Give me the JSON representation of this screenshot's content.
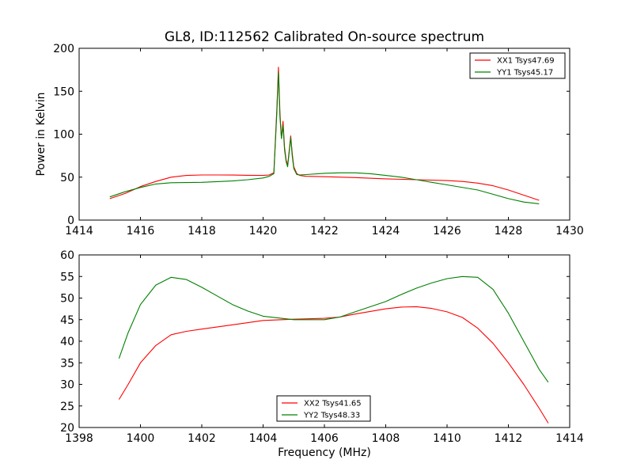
{
  "chart_data": [
    {
      "type": "line",
      "title": "GL8, ID:112562 Calibrated On-source spectrum",
      "xlabel": "",
      "ylabel": "Power in Kelvin",
      "xlim": [
        1414,
        1430
      ],
      "ylim": [
        0,
        200
      ],
      "xticks": [
        "1414",
        "1416",
        "1418",
        "1420",
        "1422",
        "1424",
        "1426",
        "1428",
        "1430"
      ],
      "yticks": [
        "0",
        "50",
        "100",
        "150",
        "200"
      ],
      "grid": false,
      "legend_position": "top-right",
      "series": [
        {
          "name": "XX1 Tsys47.69",
          "color": "#ff0000",
          "x": [
            1415,
            1415.5,
            1416,
            1416.5,
            1417,
            1417.5,
            1418,
            1418.5,
            1419,
            1419.5,
            1420,
            1420.2,
            1420.35,
            1420.45,
            1420.5,
            1420.55,
            1420.6,
            1420.65,
            1420.7,
            1420.75,
            1420.8,
            1420.85,
            1420.9,
            1420.95,
            1421.0,
            1421.1,
            1421.2,
            1421.4,
            1422,
            1423,
            1424,
            1425,
            1426,
            1426.5,
            1427,
            1427.5,
            1428,
            1428.5,
            1429
          ],
          "values": [
            25,
            31,
            39,
            45,
            50,
            52,
            52.5,
            52.5,
            52.4,
            52.2,
            52,
            52.5,
            55,
            130,
            178,
            125,
            95,
            115,
            85,
            70,
            64,
            80,
            98,
            78,
            62,
            54,
            52,
            51,
            50.5,
            49.5,
            48,
            47,
            46,
            45,
            43,
            40,
            35,
            29,
            23
          ]
        },
        {
          "name": "YY1 Tsys45.17",
          "color": "#008000",
          "x": [
            1415,
            1415.5,
            1416,
            1416.5,
            1417,
            1418,
            1419,
            1419.5,
            1420,
            1420.2,
            1420.35,
            1420.45,
            1420.5,
            1420.55,
            1420.6,
            1420.65,
            1420.7,
            1420.75,
            1420.8,
            1420.85,
            1420.9,
            1420.95,
            1421.0,
            1421.1,
            1421.2,
            1421.4,
            1422,
            1422.5,
            1423,
            1423.5,
            1424,
            1424.5,
            1425,
            1425.5,
            1426,
            1427,
            1427.5,
            1428,
            1428.5,
            1429
          ],
          "values": [
            27,
            33,
            38,
            42,
            43.5,
            44,
            45.5,
            47,
            49,
            51,
            54,
            125,
            172,
            120,
            95,
            110,
            82,
            68,
            62,
            78,
            96,
            75,
            60,
            53,
            52.5,
            53,
            54.5,
            55,
            55,
            54,
            52,
            50,
            47,
            44,
            41,
            35,
            30,
            25,
            21,
            19
          ]
        }
      ]
    },
    {
      "type": "line",
      "title": "",
      "xlabel": "Frequency (MHz)",
      "ylabel": "",
      "xlim": [
        1398,
        1414
      ],
      "ylim": [
        20,
        60
      ],
      "xticks": [
        "1398",
        "1400",
        "1402",
        "1404",
        "1406",
        "1408",
        "1410",
        "1412",
        "1414"
      ],
      "yticks": [
        "20",
        "25",
        "30",
        "35",
        "40",
        "45",
        "50",
        "55",
        "60"
      ],
      "grid": false,
      "legend_position": "bottom-center",
      "series": [
        {
          "name": "XX2 Tsys41.65",
          "color": "#ff0000",
          "x": [
            1399.3,
            1399.6,
            1400,
            1400.5,
            1401,
            1401.5,
            1402,
            1403,
            1404,
            1405,
            1406,
            1406.5,
            1407,
            1408,
            1408.5,
            1409,
            1409.5,
            1410,
            1410.5,
            1411,
            1411.5,
            1412,
            1412.5,
            1413,
            1413.3
          ],
          "values": [
            26.5,
            30,
            35,
            39,
            41.5,
            42.3,
            42.8,
            43.8,
            44.8,
            45.1,
            45.3,
            45.6,
            46.3,
            47.5,
            47.9,
            48,
            47.6,
            46.8,
            45.5,
            43,
            39.5,
            35,
            30,
            24.5,
            21
          ]
        },
        {
          "name": "YY2 Tsys48.33",
          "color": "#008000",
          "x": [
            1399.3,
            1399.6,
            1400,
            1400.5,
            1401,
            1401.5,
            1402,
            1402.5,
            1403,
            1403.5,
            1404,
            1405,
            1406,
            1406.5,
            1407,
            1408,
            1408.5,
            1409,
            1409.5,
            1410,
            1410.5,
            1411,
            1411.5,
            1412,
            1412.5,
            1413,
            1413.3
          ],
          "values": [
            36,
            42,
            48.5,
            53,
            54.8,
            54.3,
            52.5,
            50.5,
            48.5,
            47,
            45.8,
            45,
            45,
            45.6,
            46.8,
            49.2,
            50.8,
            52.3,
            53.5,
            54.5,
            55,
            54.8,
            52,
            46.5,
            40,
            33.5,
            30.5
          ]
        }
      ]
    }
  ]
}
